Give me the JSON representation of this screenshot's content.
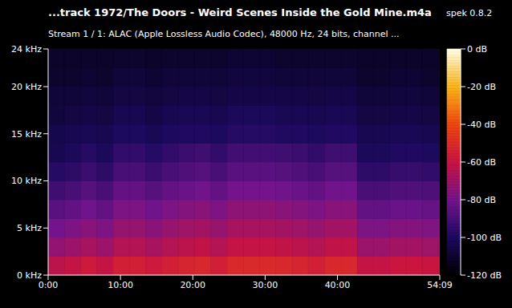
{
  "chart_data": {
    "type": "heatmap",
    "title": "...track 1972/The Doors -  Weird Scenes Inside the Gold Mine.m4a",
    "subtitle": "Stream 1 / 1: ALAC (Apple Lossless Audio Codec), 48000 Hz, 24 bits, channel ...",
    "annotation": "spek 0.8.2",
    "xlim": [
      0,
      3249
    ],
    "xticks": [
      {
        "value": 0,
        "label": "0:00"
      },
      {
        "value": 600,
        "label": "10:00"
      },
      {
        "value": 1200,
        "label": "20:00"
      },
      {
        "value": 1800,
        "label": "30:00"
      },
      {
        "value": 2400,
        "label": "40:00"
      },
      {
        "value": 3249,
        "label": "54:09"
      }
    ],
    "ylim": [
      0,
      24
    ],
    "yticks": [
      {
        "value": 0,
        "label": "0 kHz"
      },
      {
        "value": 5,
        "label": "5 kHz"
      },
      {
        "value": 10,
        "label": "10 kHz"
      },
      {
        "value": 15,
        "label": "15 kHz"
      },
      {
        "value": 20,
        "label": "20 kHz"
      },
      {
        "value": 24,
        "label": "24 kHz"
      }
    ],
    "x_bins": [
      0,
      135,
      270,
      405,
      540,
      675,
      810,
      945,
      1080,
      1215,
      1350,
      1485,
      1620,
      1755,
      1890,
      2025,
      2160,
      2295,
      2430,
      2565,
      2700,
      2835,
      2970,
      3105,
      3249
    ],
    "y_bins": [
      0,
      2,
      4,
      6,
      8,
      10,
      12,
      14,
      16,
      18,
      20,
      22,
      24
    ],
    "cells": [
      [
        -63,
        -61,
        -58,
        -61,
        -55,
        -55,
        -58,
        -55,
        -53,
        -52,
        -55,
        -51,
        -51,
        -51,
        -52,
        -53,
        -55,
        -52,
        -52,
        -61,
        -61,
        -59,
        -59,
        -60
      ],
      [
        -73,
        -71,
        -68,
        -71,
        -65,
        -65,
        -68,
        -65,
        -63,
        -62,
        -65,
        -61,
        -61,
        -61,
        -62,
        -63,
        -65,
        -62,
        -62,
        -71,
        -71,
        -69,
        -69,
        -70
      ],
      [
        -80,
        -78,
        -75,
        -78,
        -72,
        -72,
        -75,
        -72,
        -70,
        -69,
        -72,
        -68,
        -68,
        -68,
        -69,
        -70,
        -72,
        -69,
        -69,
        -78,
        -78,
        -76,
        -76,
        -77
      ],
      [
        -86,
        -84,
        -81,
        -84,
        -78,
        -78,
        -81,
        -78,
        -76,
        -75,
        -78,
        -74,
        -74,
        -74,
        -75,
        -76,
        -78,
        -75,
        -75,
        -84,
        -84,
        -82,
        -82,
        -83
      ],
      [
        -92,
        -90,
        -87,
        -90,
        -84,
        -84,
        -87,
        -84,
        -82,
        -81,
        -84,
        -80,
        -80,
        -80,
        -81,
        -82,
        -84,
        -81,
        -81,
        -90,
        -90,
        -88,
        -88,
        -89
      ],
      [
        -98,
        -96,
        -93,
        -96,
        -90,
        -90,
        -93,
        -90,
        -88,
        -87,
        -90,
        -86,
        -86,
        -86,
        -87,
        -88,
        -90,
        -87,
        -87,
        -96,
        -96,
        -94,
        -94,
        -95
      ],
      [
        -103,
        -101,
        -98,
        -101,
        -95,
        -95,
        -98,
        -95,
        -93,
        -92,
        -95,
        -91,
        -91,
        -91,
        -92,
        -93,
        -95,
        -92,
        -92,
        -101,
        -101,
        -99,
        -99,
        -100
      ],
      [
        -104,
        -103,
        -102,
        -103,
        -100,
        -100,
        -102,
        -100,
        -99,
        -99,
        -100,
        -98,
        -98,
        -98,
        -99,
        -99,
        -100,
        -99,
        -99,
        -103,
        -103,
        -102,
        -102,
        -103
      ],
      [
        -107,
        -106,
        -105,
        -106,
        -103,
        -103,
        -105,
        -103,
        -102,
        -102,
        -103,
        -101,
        -101,
        -101,
        -102,
        -102,
        -103,
        -102,
        -102,
        -106,
        -106,
        -105,
        -105,
        -106
      ],
      [
        -108,
        -108,
        -107,
        -108,
        -106,
        -106,
        -107,
        -106,
        -105,
        -105,
        -106,
        -105,
        -105,
        -105,
        -105,
        -105,
        -106,
        -105,
        -105,
        -108,
        -108,
        -107,
        -107,
        -108
      ],
      [
        -110,
        -110,
        -109,
        -110,
        -108,
        -108,
        -109,
        -108,
        -108,
        -108,
        -108,
        -107,
        -107,
        -107,
        -108,
        -108,
        -108,
        -108,
        -108,
        -110,
        -110,
        -109,
        -109,
        -110
      ],
      [
        -111,
        -111,
        -111,
        -111,
        -110,
        -110,
        -111,
        -110,
        -110,
        -110,
        -110,
        -109,
        -109,
        -109,
        -110,
        -110,
        -110,
        -110,
        -110,
        -111,
        -111,
        -111,
        -111,
        -111
      ]
    ],
    "color_range": [
      -120,
      0
    ],
    "color_ticks": [
      {
        "value": 0,
        "label": "0 dB"
      },
      {
        "value": -20,
        "label": "-20 dB"
      },
      {
        "value": -40,
        "label": "-40 dB"
      },
      {
        "value": -60,
        "label": "-60 dB"
      },
      {
        "value": -80,
        "label": "-80 dB"
      },
      {
        "value": -100,
        "label": "-100 dB"
      },
      {
        "value": -120,
        "label": "-120 dB"
      }
    ]
  }
}
